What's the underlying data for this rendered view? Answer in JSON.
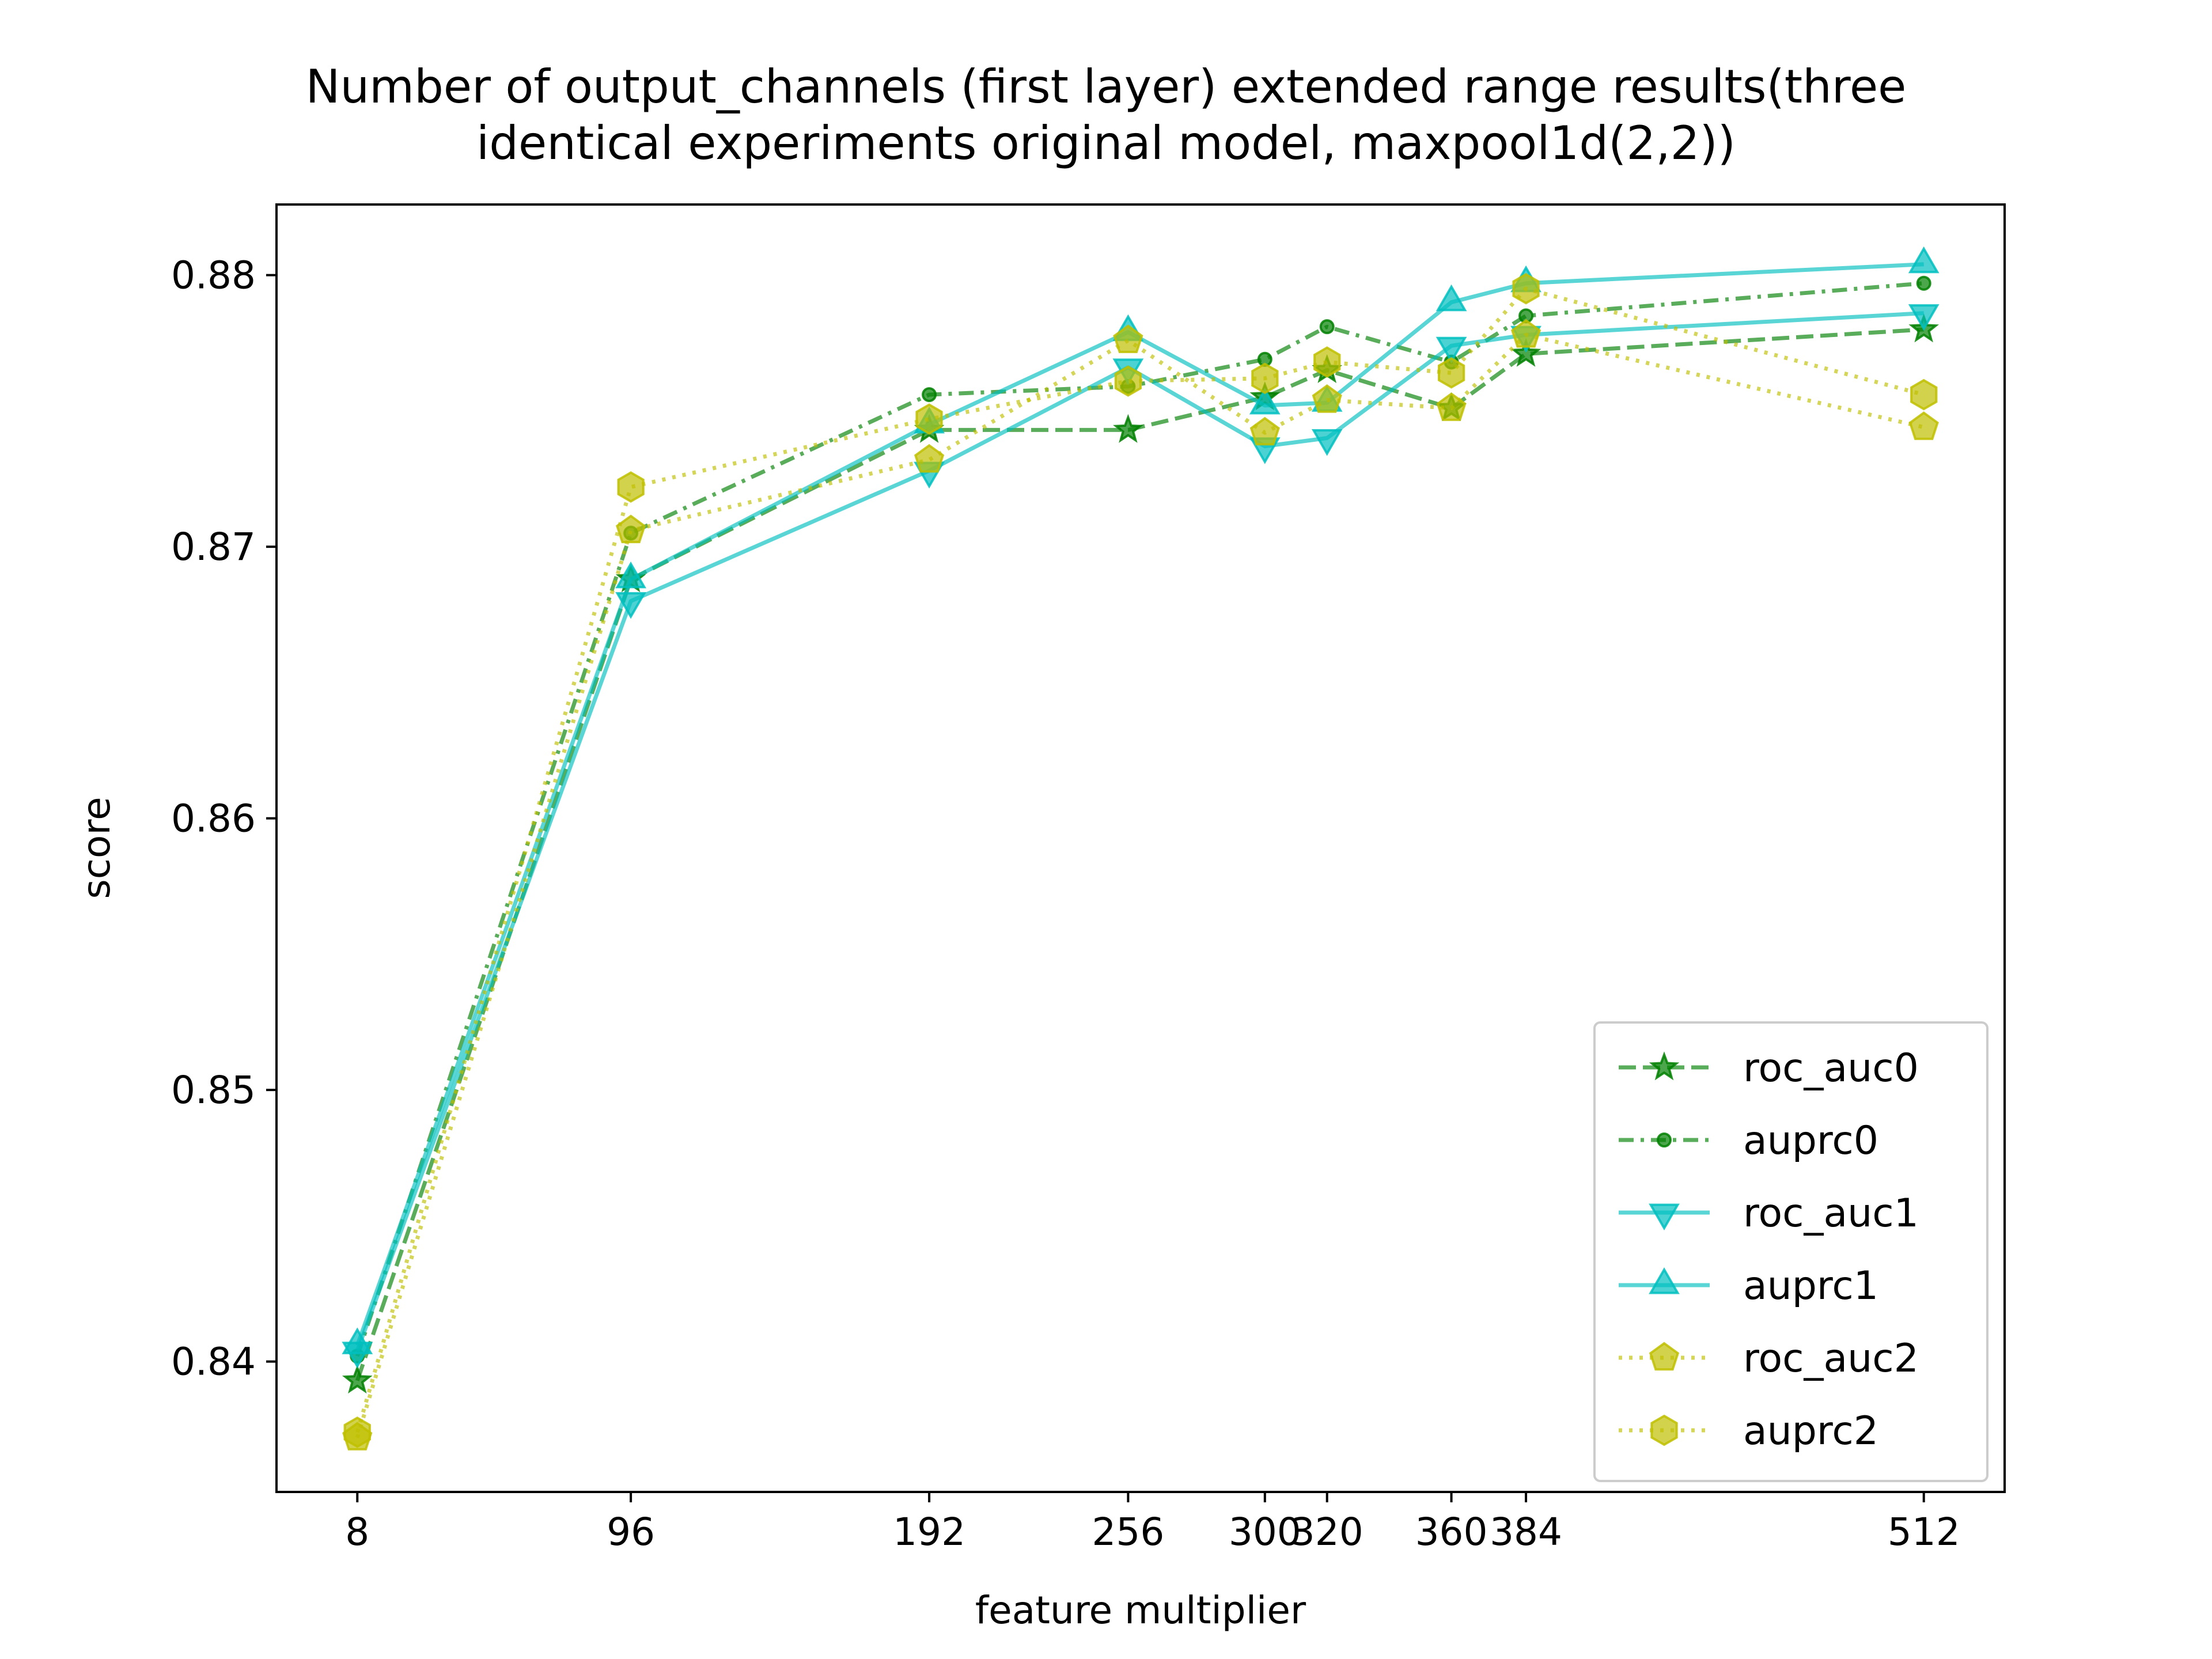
{
  "chart_data": {
    "type": "line",
    "title": "Number of output_channels (first layer) extended range results(three\nidentical experiments original model, maxpool1d(2,2))",
    "xlabel": "feature multiplier",
    "ylabel": "score",
    "x": [
      8,
      96,
      192,
      256,
      300,
      320,
      360,
      384,
      512
    ],
    "x_tick_labels": [
      "8",
      "96",
      "192",
      "256",
      "300",
      "320",
      "360",
      "384",
      "512"
    ],
    "xlim": [
      -18,
      538
    ],
    "ylim": [
      0.8352,
      0.8826
    ],
    "y_ticks": [
      0.84,
      0.85,
      0.86,
      0.87,
      0.88
    ],
    "y_tick_labels": [
      "0.84",
      "0.85",
      "0.86",
      "0.87",
      "0.88"
    ],
    "grid": false,
    "legend_position": "lower-right",
    "series": [
      {
        "name": "roc_auc0",
        "color": "#008000",
        "linestyle": "dashed",
        "marker": "star",
        "values": [
          0.8393,
          0.8688,
          0.8743,
          0.8743,
          0.8755,
          0.8765,
          0.8751,
          0.8771,
          0.878
        ]
      },
      {
        "name": "auprc0",
        "color": "#008000",
        "linestyle": "dashdot",
        "marker": "circle",
        "values": [
          0.8402,
          0.8705,
          0.8756,
          0.8759,
          0.8769,
          0.8781,
          0.8768,
          0.8785,
          0.8797
        ]
      },
      {
        "name": "roc_auc1",
        "color": "#00bfbf",
        "linestyle": "solid",
        "marker": "triangle-down",
        "values": [
          0.8404,
          0.868,
          0.8728,
          0.8766,
          0.8737,
          0.874,
          0.8774,
          0.8778,
          0.8786
        ]
      },
      {
        "name": "auprc1",
        "color": "#00bfbf",
        "linestyle": "solid",
        "marker": "triangle-up",
        "values": [
          0.8406,
          0.8688,
          0.8745,
          0.8779,
          0.8752,
          0.8753,
          0.879,
          0.8797,
          0.8804
        ]
      },
      {
        "name": "roc_auc2",
        "color": "#bfbf00",
        "linestyle": "dotted",
        "marker": "pentagon",
        "values": [
          0.8372,
          0.8706,
          0.8732,
          0.8776,
          0.8742,
          0.8754,
          0.8751,
          0.8778,
          0.8744
        ]
      },
      {
        "name": "auprc2",
        "color": "#bfbf00",
        "linestyle": "dotted",
        "marker": "hexagon",
        "values": [
          0.8374,
          0.8722,
          0.8747,
          0.8761,
          0.8762,
          0.8768,
          0.8764,
          0.8795,
          0.8756
        ]
      }
    ]
  }
}
